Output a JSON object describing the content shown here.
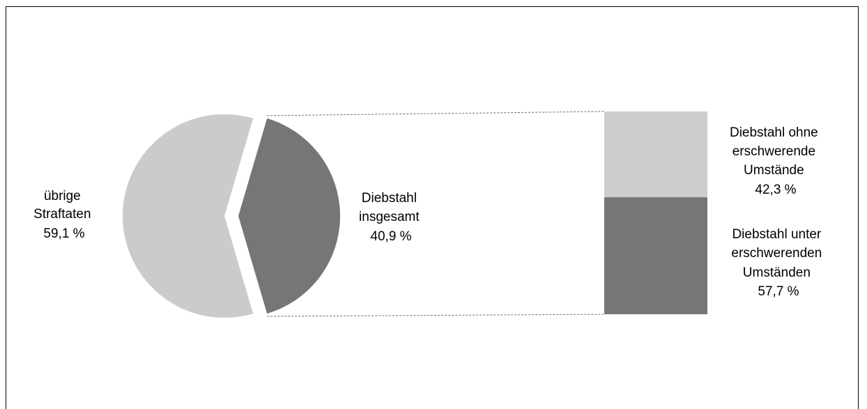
{
  "chart_data": {
    "type": "pie",
    "variant": "bar-of-pie",
    "pie": {
      "slices": [
        {
          "label": [
            "übrige",
            "Straftaten"
          ],
          "value": 59.1,
          "value_label": "59,1 %",
          "color": "#cbcbcb"
        },
        {
          "label": [
            "Diebstahl",
            "insgesamt"
          ],
          "value": 40.9,
          "value_label": "40,9 %",
          "color": "#757677",
          "exploded": true
        }
      ]
    },
    "bar": {
      "segments": [
        {
          "label": [
            "Diebstahl ohne",
            "erschwerende",
            "Umstände"
          ],
          "value": 42.3,
          "value_label": "42,3 %",
          "color": "#cdcdcb"
        },
        {
          "label": [
            "Diebstahl unter",
            "erschwerenden",
            "Umständen"
          ],
          "value": 57.7,
          "value_label": "57,7 %",
          "color": "#757677"
        }
      ]
    },
    "connector_style": "dashed"
  }
}
